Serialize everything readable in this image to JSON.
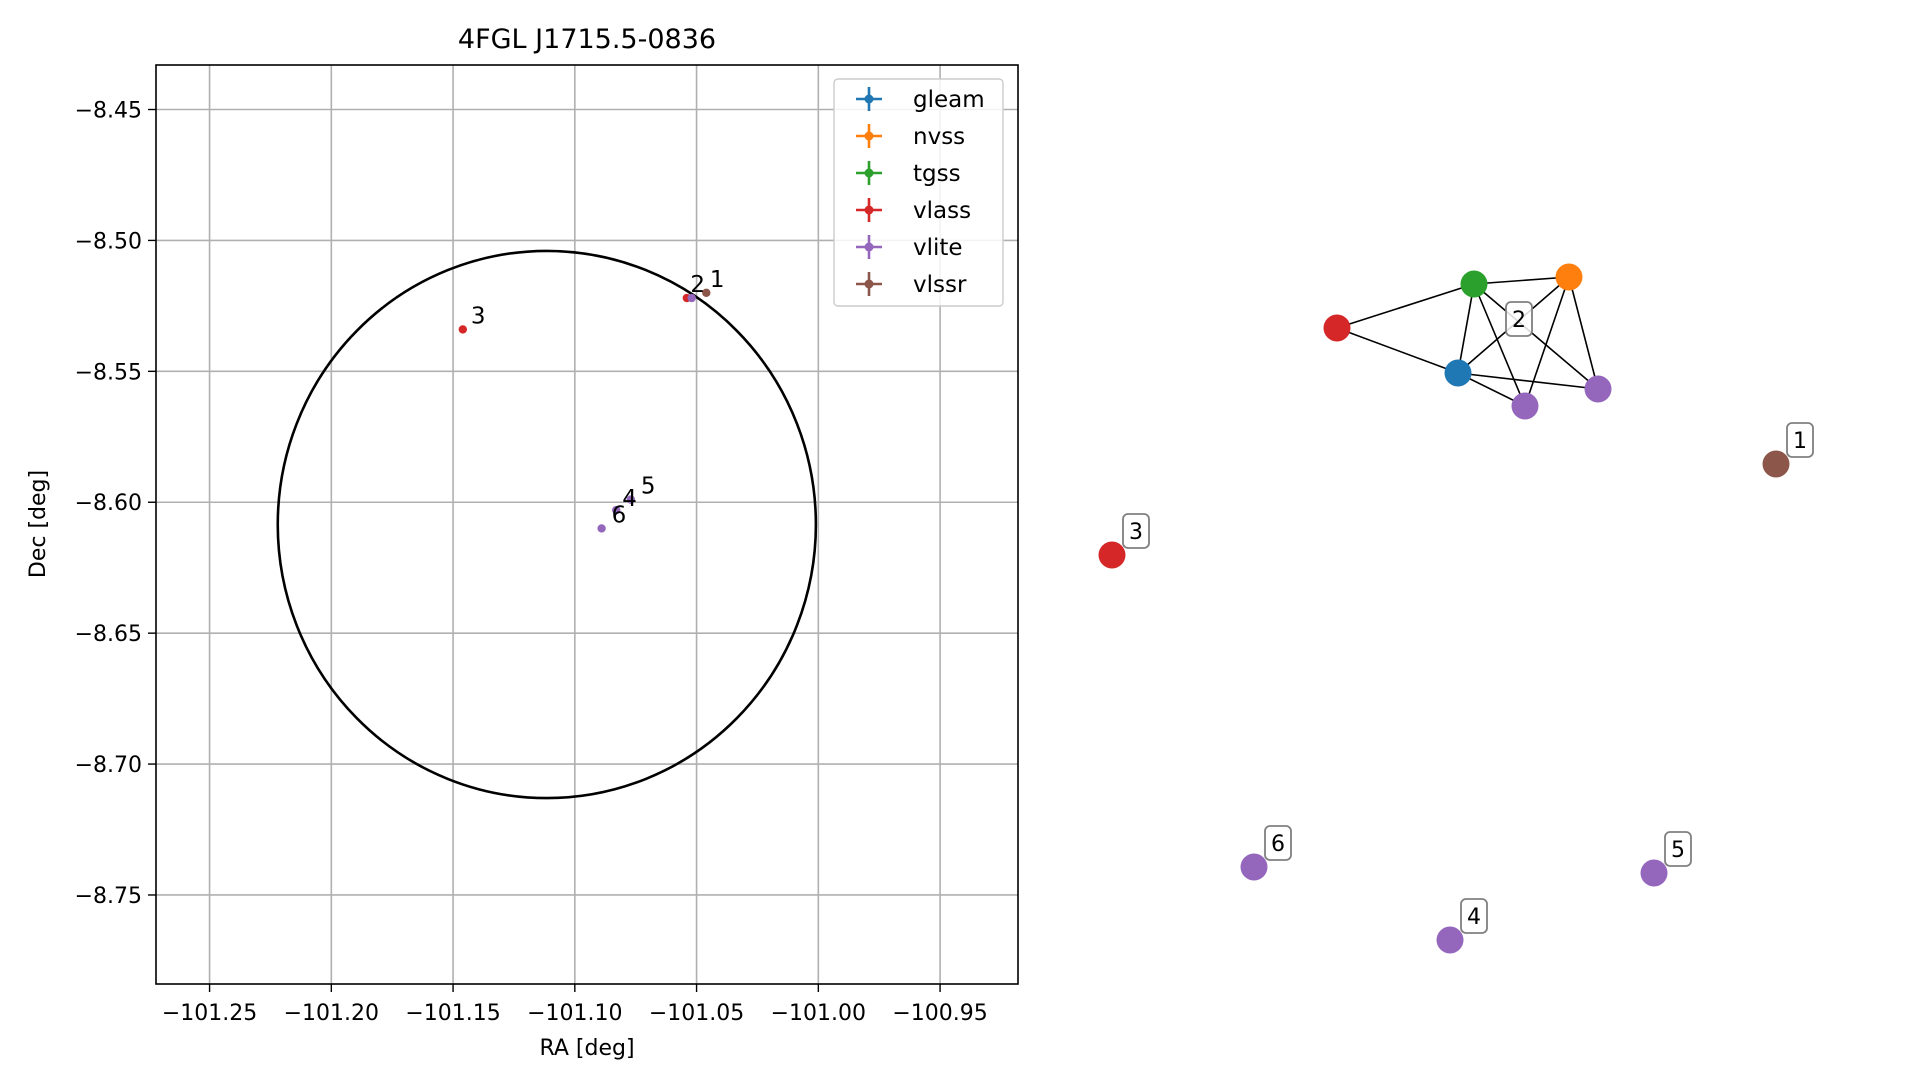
{
  "chart_data": [
    {
      "type": "scatter",
      "title": "4FGL J1715.5-0836",
      "xlabel": "RA [deg]",
      "ylabel": "Dec [deg]",
      "xlim": [
        -101.272,
        -100.918
      ],
      "ylim": [
        -8.784,
        -8.433
      ],
      "xticks": [
        -101.25,
        -101.2,
        -101.15,
        -101.1,
        -101.05,
        -101.0,
        -100.95
      ],
      "xtick_labels": [
        "−101.25",
        "−101.20",
        "−101.15",
        "−101.10",
        "−101.05",
        "−101.00",
        "−100.95"
      ],
      "yticks": [
        -8.45,
        -8.5,
        -8.55,
        -8.6,
        -8.65,
        -8.7,
        -8.75
      ],
      "ytick_labels": [
        "−8.45",
        "−8.50",
        "−8.55",
        "−8.60",
        "−8.65",
        "−8.70",
        "−8.75"
      ],
      "grid": true,
      "legend_position": "top-right",
      "ellipse": {
        "center_ra": -101.1115,
        "center_dec": -8.6085,
        "half_width_ra": 0.1105,
        "half_height_dec": 0.1045,
        "color": "#000000"
      },
      "series": [
        {
          "name": "gleam",
          "color": "#1f77b4",
          "points": []
        },
        {
          "name": "nvss",
          "color": "#ff7f0e",
          "points": []
        },
        {
          "name": "tgss",
          "color": "#2ca02c",
          "points": []
        },
        {
          "name": "vlass",
          "color": "#d62728",
          "points": [
            {
              "ra": -101.146,
              "dec": -8.534
            },
            {
              "ra": -101.054,
              "dec": -8.522
            }
          ]
        },
        {
          "name": "vlite",
          "color": "#9467bd",
          "points": [
            {
              "ra": -101.052,
              "dec": -8.522
            },
            {
              "ra": -101.077,
              "dec": -8.599
            },
            {
              "ra": -101.083,
              "dec": -8.603
            },
            {
              "ra": -101.089,
              "dec": -8.61
            }
          ]
        },
        {
          "name": "vlssr",
          "color": "#8c564b",
          "points": [
            {
              "ra": -101.046,
              "dec": -8.52
            }
          ]
        }
      ],
      "annotations": [
        {
          "text": "2",
          "ra": -101.055,
          "dec": -8.522,
          "dx": 6,
          "dy": -6
        },
        {
          "text": "1",
          "ra": -101.047,
          "dec": -8.52,
          "dx": 6,
          "dy": -6
        },
        {
          "text": "3",
          "ra": -101.146,
          "dec": -8.534,
          "dx": 8,
          "dy": -6
        },
        {
          "text": "5",
          "ra": -101.077,
          "dec": -8.599,
          "dx": 10,
          "dy": -6
        },
        {
          "text": "4",
          "ra": -101.083,
          "dec": -8.603,
          "dx": 6,
          "dy": -4
        },
        {
          "text": "6",
          "ra": -101.089,
          "dec": -8.61,
          "dx": 10,
          "dy": -6
        }
      ]
    },
    {
      "type": "diagram",
      "nodes": [
        {
          "id": "n_vlass",
          "color": "#d62728"
        },
        {
          "id": "n_tgss",
          "color": "#2ca02c"
        },
        {
          "id": "n_nvss",
          "color": "#ff7f0e"
        },
        {
          "id": "n_gleam",
          "color": "#1f77b4"
        },
        {
          "id": "n_vlite_a",
          "color": "#9467bd"
        },
        {
          "id": "n_vlite_b",
          "color": "#9467bd"
        },
        {
          "id": "n_1",
          "color": "#8c564b",
          "label": "1"
        },
        {
          "id": "n_3",
          "color": "#d62728",
          "label": "3"
        },
        {
          "id": "n_6",
          "color": "#9467bd",
          "label": "6"
        },
        {
          "id": "n_4",
          "color": "#9467bd",
          "label": "4"
        },
        {
          "id": "n_5",
          "color": "#9467bd",
          "label": "5"
        }
      ],
      "edges": [
        [
          "n_vlass",
          "n_tgss"
        ],
        [
          "n_vlass",
          "n_gleam"
        ],
        [
          "n_tgss",
          "n_nvss"
        ],
        [
          "n_tgss",
          "n_gleam"
        ],
        [
          "n_tgss",
          "n_vlite_a"
        ],
        [
          "n_tgss",
          "n_vlite_b"
        ],
        [
          "n_nvss",
          "n_gleam"
        ],
        [
          "n_nvss",
          "n_vlite_a"
        ],
        [
          "n_nvss",
          "n_vlite_b"
        ],
        [
          "n_gleam",
          "n_vlite_a"
        ],
        [
          "n_gleam",
          "n_vlite_b"
        ]
      ],
      "cluster_label": "2"
    }
  ]
}
